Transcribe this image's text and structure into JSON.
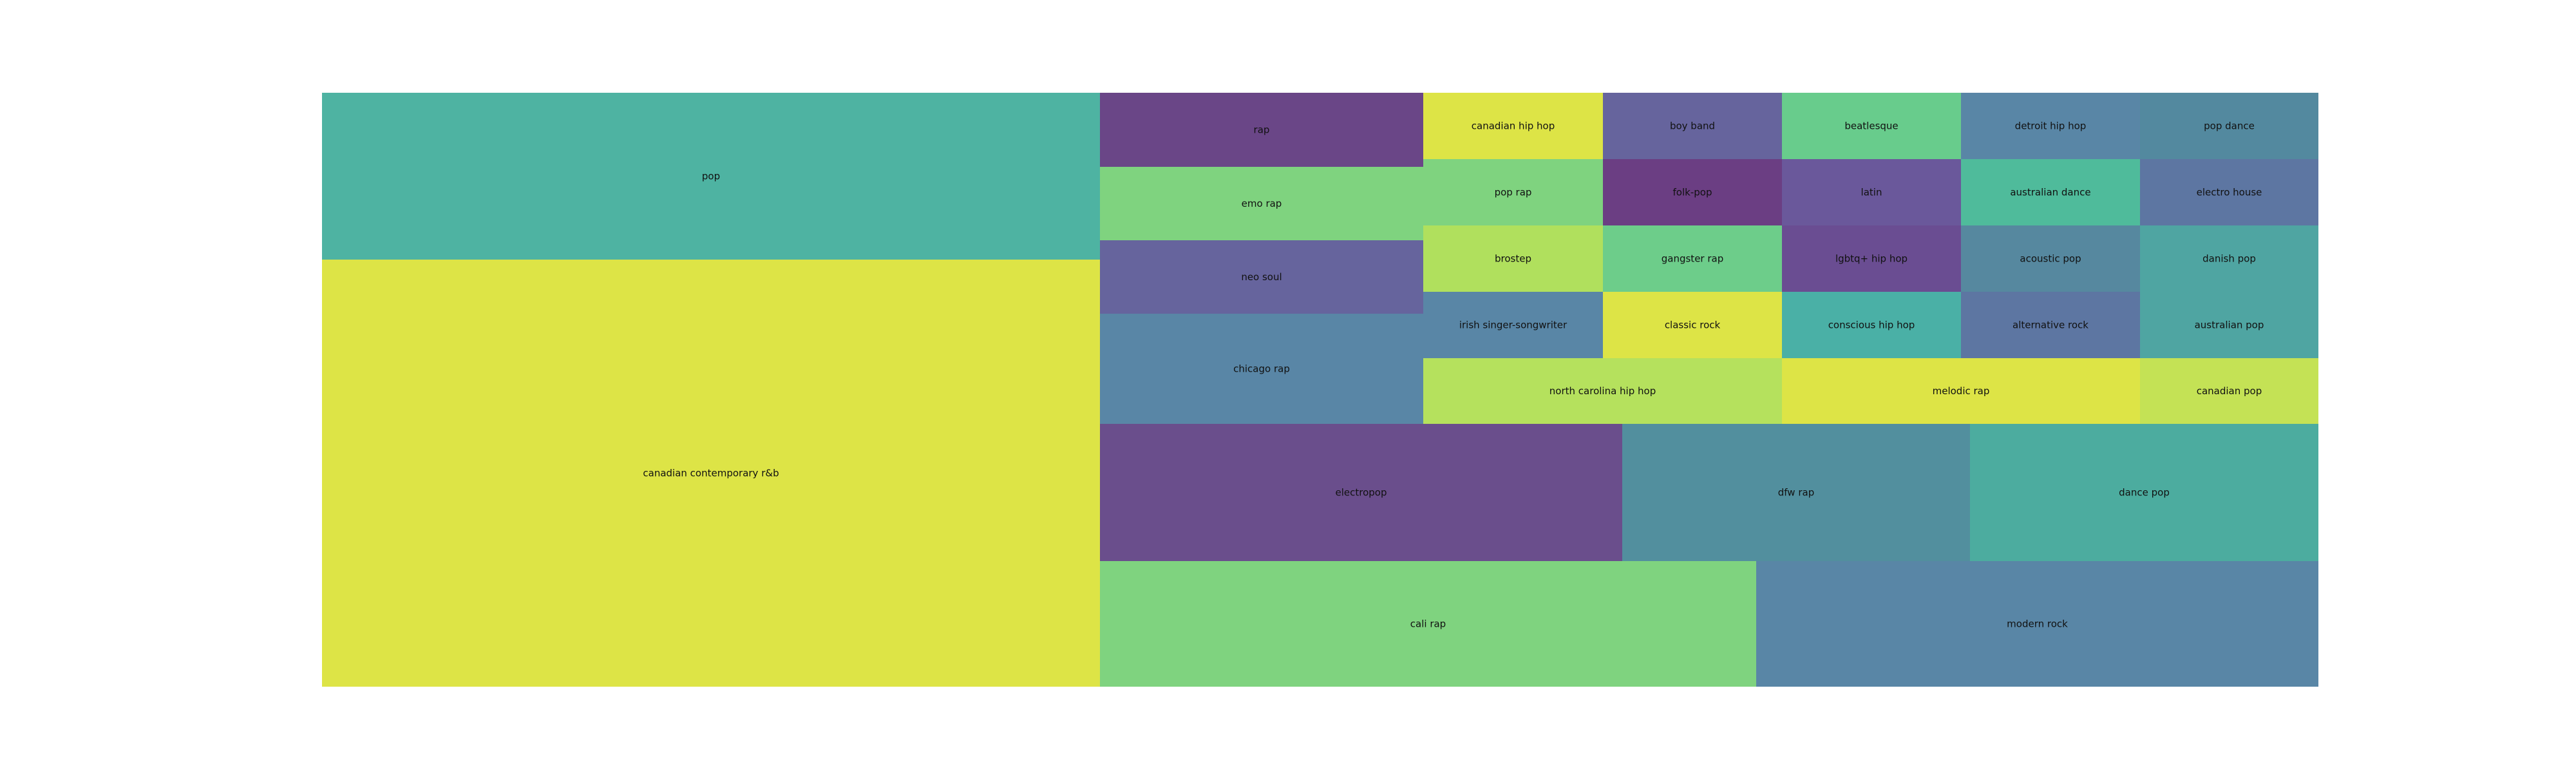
{
  "chart_data": {
    "type": "treemap",
    "title": "",
    "tiles": [
      {
        "label": "canadian contemporary r&b",
        "color": "#dde446"
      },
      {
        "label": "pop",
        "color": "#4eb3a2"
      },
      {
        "label": "rap",
        "color": "#6a4687"
      },
      {
        "label": "emo rap",
        "color": "#7fd37f"
      },
      {
        "label": "neo soul",
        "color": "#66649d"
      },
      {
        "label": "chicago rap",
        "color": "#5986a6"
      },
      {
        "label": "canadian hip hop",
        "color": "#dde446"
      },
      {
        "label": "boy band",
        "color": "#66649d"
      },
      {
        "label": "beatlesque",
        "color": "#68cc8c"
      },
      {
        "label": "detroit hip hop",
        "color": "#5986a6"
      },
      {
        "label": "pop dance",
        "color": "#53899f"
      },
      {
        "label": "pop rap",
        "color": "#7fd37f"
      },
      {
        "label": "folk-pop",
        "color": "#6b3e83"
      },
      {
        "label": "latin",
        "color": "#6a589b"
      },
      {
        "label": "australian dance",
        "color": "#4fbb9b"
      },
      {
        "label": "electro house",
        "color": "#5d76a2"
      },
      {
        "label": "brostep",
        "color": "#b0e05d"
      },
      {
        "label": "gangster rap",
        "color": "#6dcd8a"
      },
      {
        "label": "lgbtq+ hip hop",
        "color": "#6a4d92"
      },
      {
        "label": "acoustic pop",
        "color": "#56889f"
      },
      {
        "label": "danish pop",
        "color": "#4fa5a2"
      },
      {
        "label": "irish singer-songwriter",
        "color": "#5986a6"
      },
      {
        "label": "classic rock",
        "color": "#dde446"
      },
      {
        "label": "conscious hip hop",
        "color": "#4ab0a6"
      },
      {
        "label": "alternative rock",
        "color": "#5d76a2"
      },
      {
        "label": "australian pop",
        "color": "#4fa5a2"
      },
      {
        "label": "north carolina hip hop",
        "color": "#b5e15d"
      },
      {
        "label": "melodic rap",
        "color": "#dde446"
      },
      {
        "label": "canadian pop",
        "color": "#c4e255"
      },
      {
        "label": "electropop",
        "color": "#6a4e8c"
      },
      {
        "label": "dfw rap",
        "color": "#528f9e"
      },
      {
        "label": "dance pop",
        "color": "#4cac9f"
      },
      {
        "label": "cali rap",
        "color": "#7fd37f"
      },
      {
        "label": "modern rock",
        "color": "#5986a6"
      }
    ]
  }
}
